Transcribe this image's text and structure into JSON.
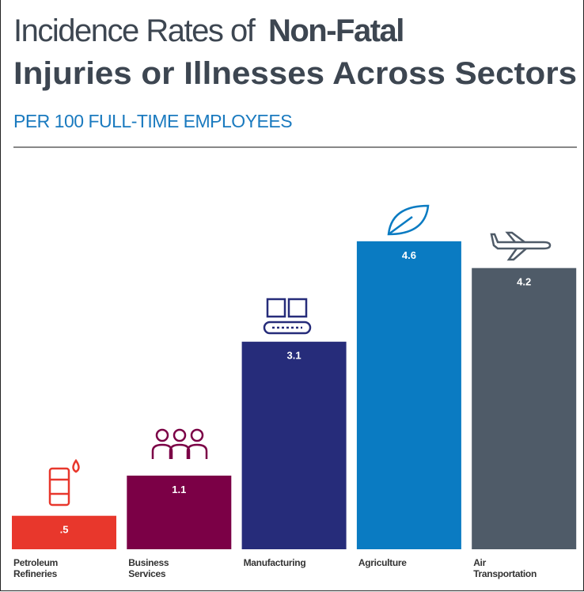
{
  "chart_data": {
    "type": "bar",
    "title": [
      "Incidence Rates of",
      "Non-Fatal",
      "Injuries or Illnesses Across Sectors"
    ],
    "subtitle": "PER 100 FULL-TIME EMPLOYEES",
    "categories": [
      "Petroleum Refineries",
      "Business Services",
      "Manufacturing",
      "Agriculture",
      "Air Transportation"
    ],
    "values": [
      0.5,
      1.1,
      3.1,
      4.6,
      4.2
    ],
    "value_labels": [
      ".5",
      "1.1",
      "3.1",
      "4.6",
      "4.2"
    ],
    "colors": [
      "#e8372c",
      "#7b0046",
      "#262c7a",
      "#0a7bc2",
      "#4f5b68"
    ]
  }
}
